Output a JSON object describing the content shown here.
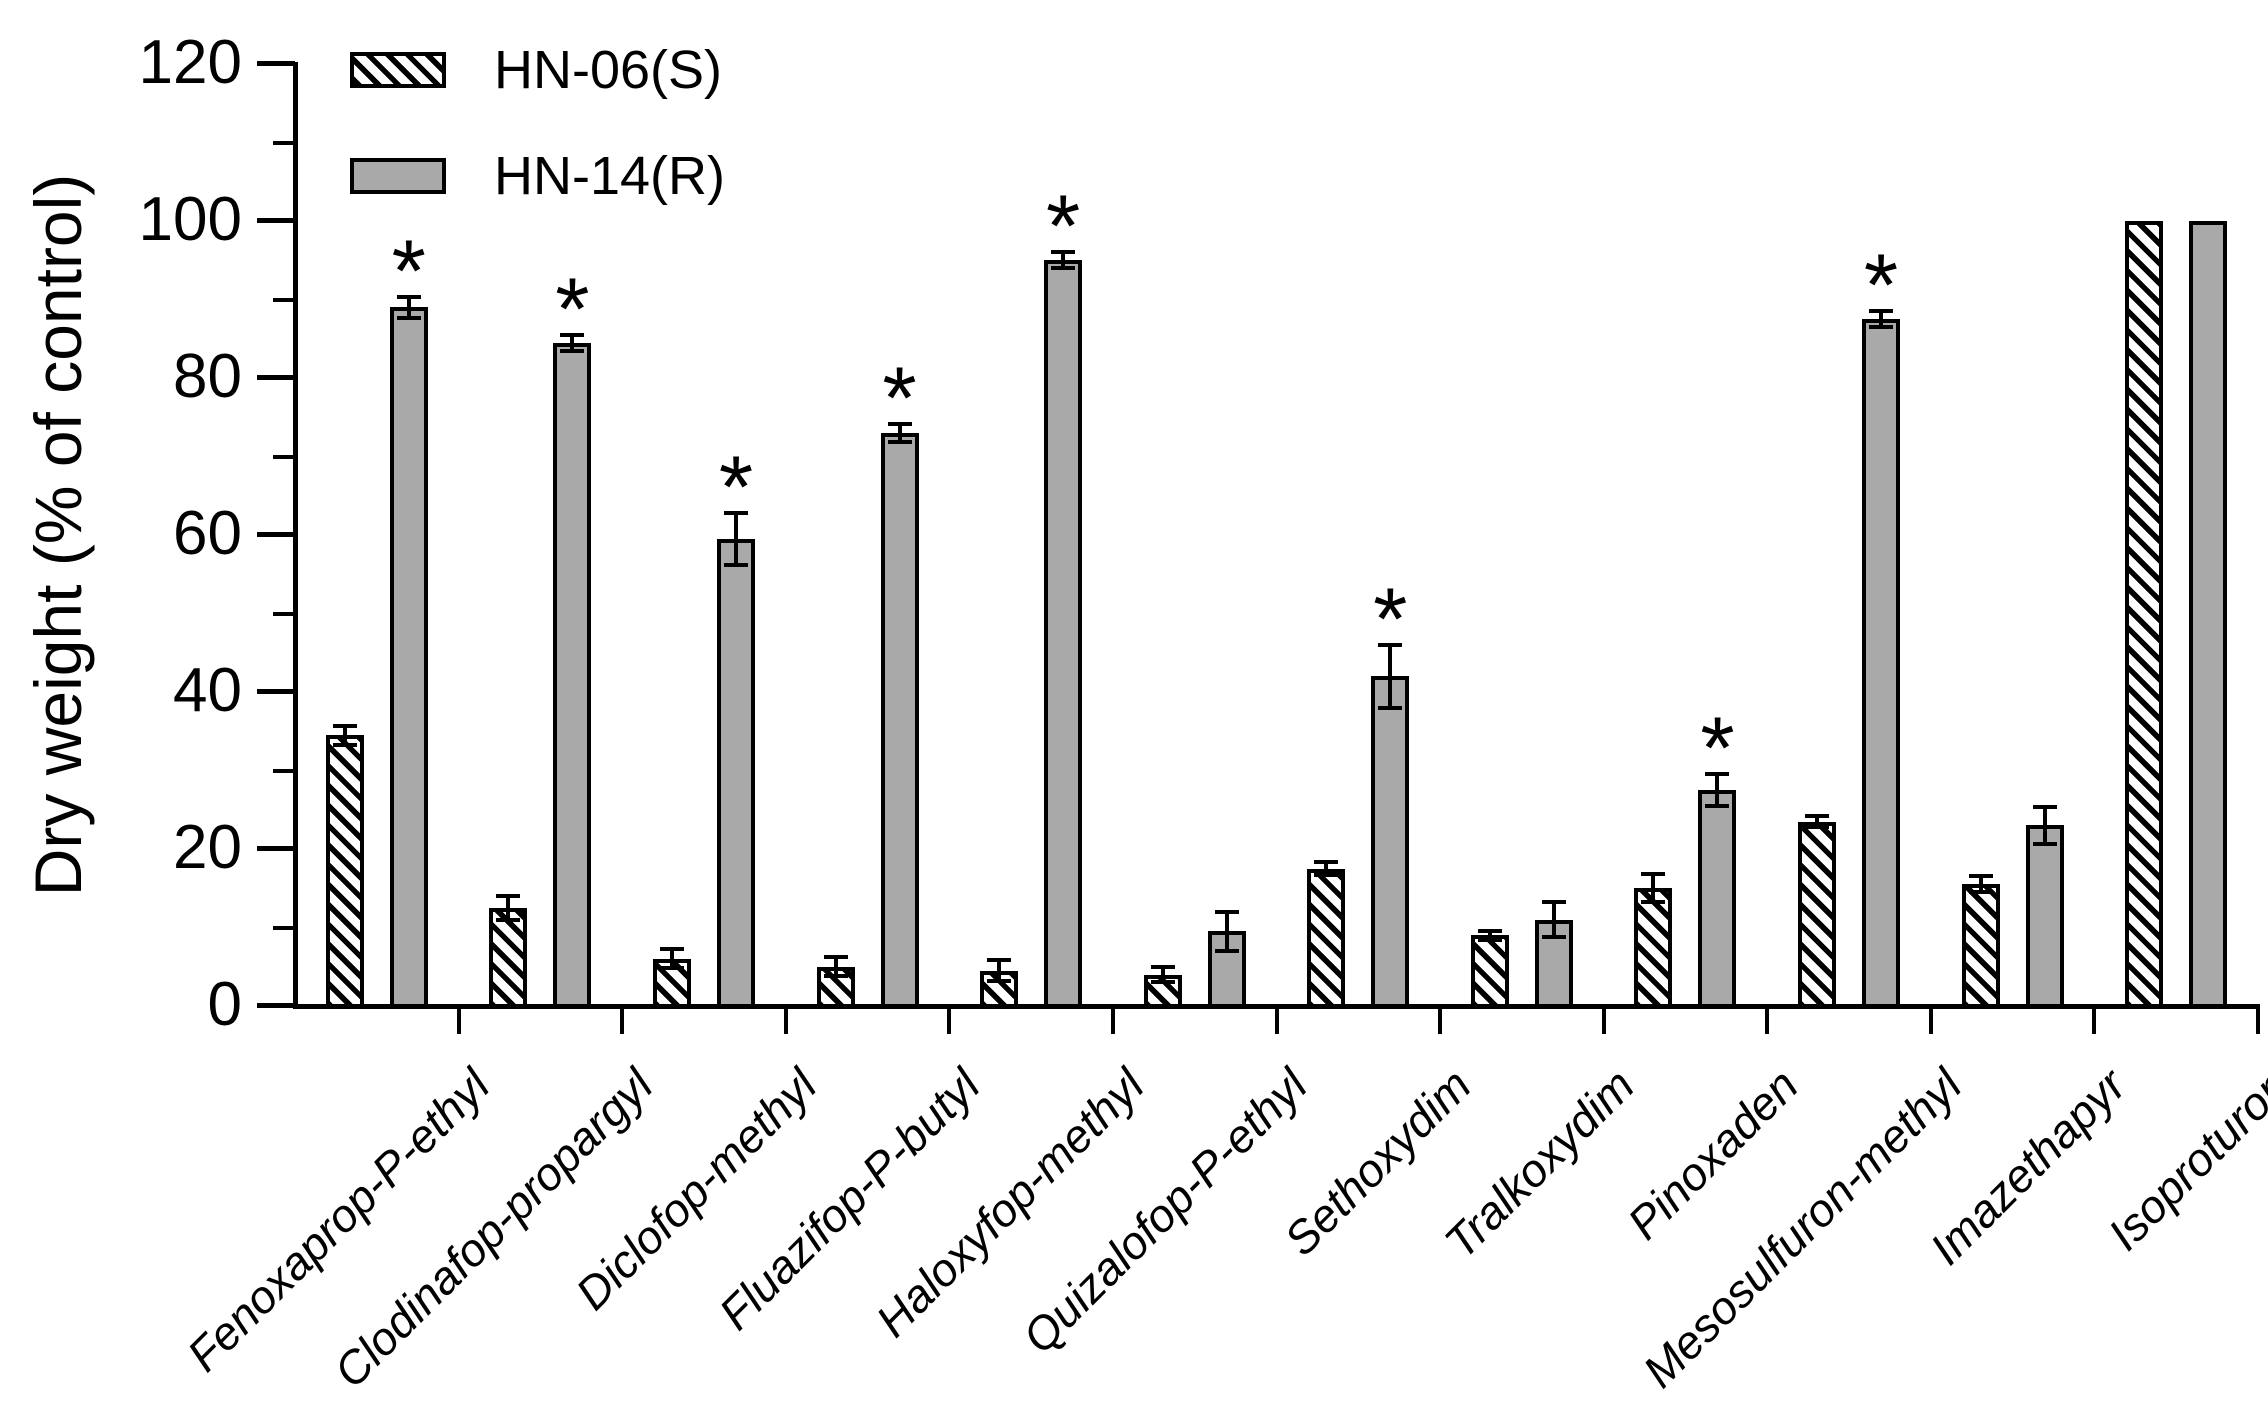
{
  "figure": {
    "background": "#ffffff"
  },
  "colors": {
    "resistant_fill": "#a9a9a9",
    "outline": "#000000",
    "text": "#000000",
    "background": "#ffffff"
  },
  "legend": {
    "items": [
      {
        "label": "HN-06(S)",
        "style": "hatched"
      },
      {
        "label": "HN-14(R)",
        "style": "solid-gray"
      }
    ]
  },
  "chart_data": {
    "type": "bar",
    "title": "",
    "xlabel": "",
    "ylabel": "Dry weight (% of control)",
    "ylim": [
      0,
      120
    ],
    "yticks": [
      0,
      20,
      40,
      60,
      80,
      100,
      120
    ],
    "yticks_minor": [
      10,
      30,
      50,
      70,
      90,
      110
    ],
    "grid": false,
    "legend_position": "top-left-inside",
    "significance_marker": "*",
    "categories": [
      "Fenoxaprop-P-ethyl",
      "Clodinafop-propargyl",
      "Diclofop-methyl",
      "Fluazifop-P-butyl",
      "Haloxyfop-methyl",
      "Quizalofop-P-ethyl",
      "Sethoxydim",
      "Tralkoxydim",
      "Pinoxaden",
      "Mesosulfuron-methyl",
      "Imazethapyr",
      "Isoproturon"
    ],
    "series": [
      {
        "name": "HN-06(S)",
        "style": "hatched",
        "values": [
          34.5,
          12.5,
          6.0,
          5.0,
          4.5,
          4.0,
          17.5,
          9.0,
          15.0,
          23.5,
          15.5,
          100
        ],
        "errors": [
          1.2,
          1.5,
          1.2,
          1.2,
          1.3,
          1.0,
          0.8,
          0.6,
          1.8,
          0.7,
          1.0,
          0
        ],
        "significant": [
          false,
          false,
          false,
          false,
          false,
          false,
          false,
          false,
          false,
          false,
          false,
          false
        ]
      },
      {
        "name": "HN-14(R)",
        "style": "solid-gray",
        "fill": "#a9a9a9",
        "values": [
          89,
          84.5,
          59.5,
          73,
          95,
          9.5,
          42,
          11,
          27.5,
          87.5,
          23,
          100
        ],
        "errors": [
          1.3,
          1.0,
          3.3,
          1.2,
          1.0,
          2.5,
          4.0,
          2.2,
          2.0,
          1.0,
          2.4,
          0
        ],
        "significant": [
          true,
          true,
          true,
          true,
          true,
          false,
          true,
          false,
          true,
          true,
          false,
          false
        ]
      }
    ]
  }
}
